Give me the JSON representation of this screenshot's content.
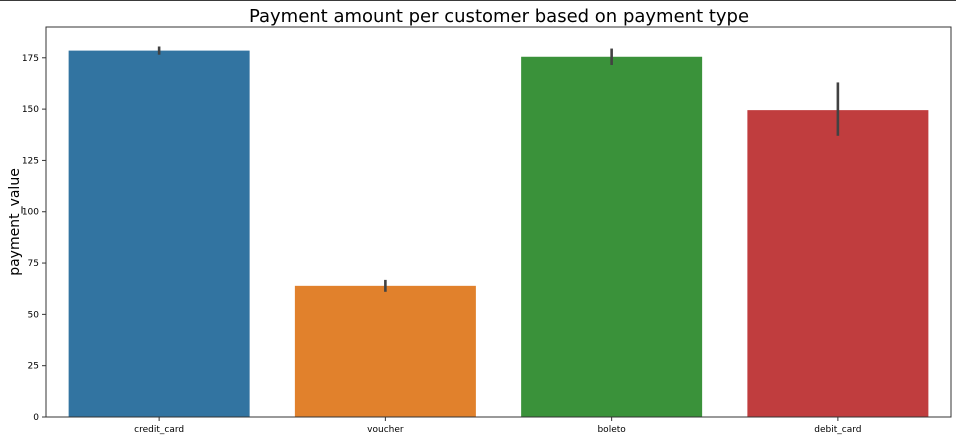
{
  "chart_data": {
    "type": "bar",
    "title": "Payment amount per customer based on payment type",
    "xlabel": "",
    "ylabel": "payment_value",
    "categories": [
      "credit_card",
      "voucher",
      "boleto",
      "debit_card"
    ],
    "values": [
      178.5,
      63.9,
      175.5,
      149.5
    ],
    "error_bars": [
      {
        "low": 176.5,
        "high": 180.5
      },
      {
        "low": 61.0,
        "high": 66.8
      },
      {
        "low": 171.5,
        "high": 179.5
      },
      {
        "low": 137.0,
        "high": 163.0
      }
    ],
    "colors": [
      "#3274a1",
      "#e1812c",
      "#3a923a",
      "#c03d3e"
    ],
    "error_bar_color": "#424242",
    "ylim": [
      0,
      190
    ],
    "yticks": [
      0,
      25,
      50,
      75,
      100,
      125,
      150,
      175
    ],
    "grid": false,
    "legend": false
  }
}
